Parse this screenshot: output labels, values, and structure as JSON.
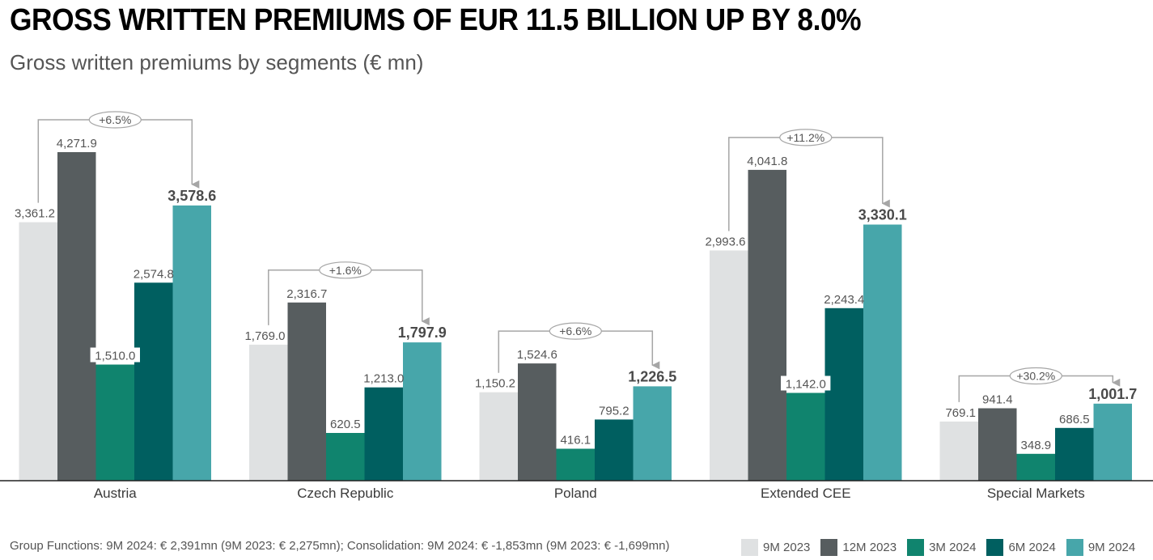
{
  "title": "GROSS WRITTEN PREMIUMS OF EUR 11.5 BILLION UP BY 8.0%",
  "subtitle": "Gross written premiums by segments (€ mn)",
  "footnote": "Group Functions: 9M 2024: € 2,391mn (9M 2023: € 2,275mn); Consolidation: 9M 2024: € -1,853mn (9M 2023: € -1,699mn)",
  "chart_data": {
    "type": "bar",
    "categories": [
      "Austria",
      "Czech Republic",
      "Poland",
      "Extended CEE",
      "Special Markets"
    ],
    "series": [
      {
        "name": "9M 2023",
        "color": "#dfe1e2",
        "values": [
          3361.2,
          1769.0,
          1150.2,
          2993.6,
          769.1
        ],
        "labels": [
          "3,361.2",
          "1,769.0",
          "1,150.2",
          "2,993.6",
          "769.1"
        ]
      },
      {
        "name": "12M 2023",
        "color": "#575d5f",
        "values": [
          4271.9,
          2316.7,
          1524.6,
          4041.8,
          941.4
        ],
        "labels": [
          "4,271.9",
          "2,316.7",
          "1,524.6",
          "4,041.8",
          "941.4"
        ]
      },
      {
        "name": "3M 2024",
        "color": "#10846e",
        "values": [
          1510.0,
          620.5,
          416.1,
          1142.0,
          348.9
        ],
        "labels": [
          "1,510.0",
          "620.5",
          "416.1",
          "1,142.0",
          "348.9"
        ]
      },
      {
        "name": "6M 2024",
        "color": "#005f60",
        "values": [
          2574.8,
          1213.0,
          795.2,
          2243.4,
          686.5
        ],
        "labels": [
          "2,574.8",
          "1,213.0",
          "795.2",
          "2,243.4",
          "686.5"
        ]
      },
      {
        "name": "9M 2024",
        "color": "#47a6aa",
        "values": [
          3578.6,
          1797.9,
          1226.5,
          3330.1,
          1001.7
        ],
        "labels": [
          "3,578.6",
          "1,797.9",
          "1,226.5",
          "3,330.1",
          "1,001.7"
        ]
      }
    ],
    "growth": [
      "+6.5%",
      "+1.6%",
      "+6.6%",
      "+11.2%",
      "+30.2%"
    ],
    "ylim": [
      0,
      4271.9
    ]
  }
}
